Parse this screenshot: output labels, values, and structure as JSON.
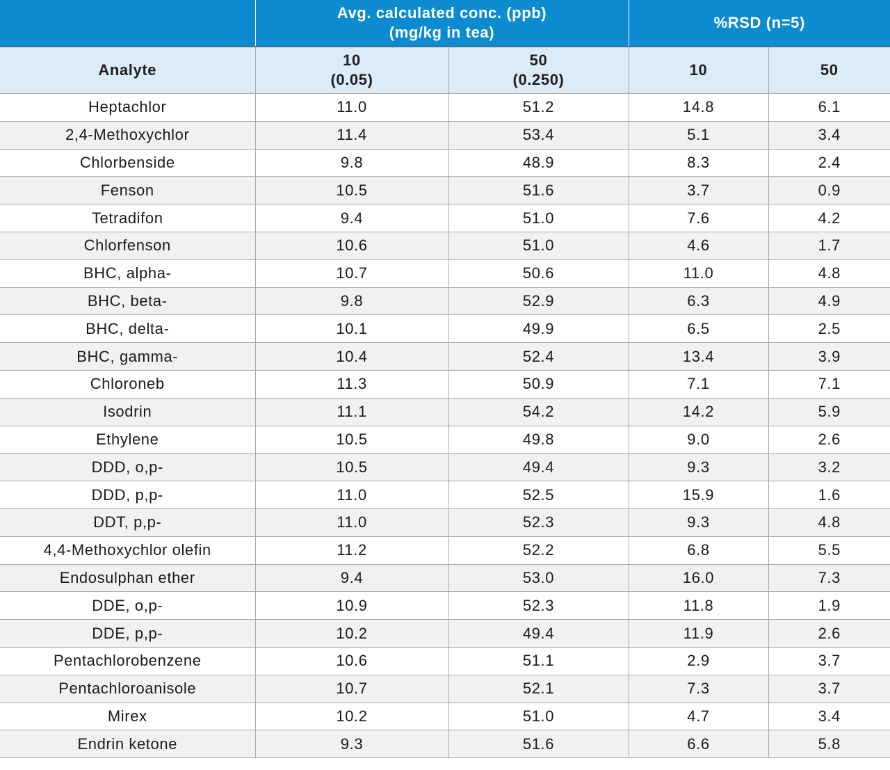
{
  "header": {
    "group_blank": "",
    "group_conc_line1": "Avg. calculated conc. (ppb)",
    "group_conc_line2": "(mg/kg in tea)",
    "group_rsd": "%RSD (n=5)",
    "analyte": "Analyte",
    "conc10_line1": "10",
    "conc10_line2": "(0.05)",
    "conc50_line1": "50",
    "conc50_line2": "(0.250)",
    "rsd10": "10",
    "rsd50": "50"
  },
  "rows": [
    {
      "analyte": "Heptachlor",
      "c10": "11.0",
      "c50": "51.2",
      "r10": "14.8",
      "r50": "6.1"
    },
    {
      "analyte": "2,4-Methoxychlor",
      "c10": "11.4",
      "c50": "53.4",
      "r10": "5.1",
      "r50": "3.4"
    },
    {
      "analyte": "Chlorbenside",
      "c10": "9.8",
      "c50": "48.9",
      "r10": "8.3",
      "r50": "2.4"
    },
    {
      "analyte": "Fenson",
      "c10": "10.5",
      "c50": "51.6",
      "r10": "3.7",
      "r50": "0.9"
    },
    {
      "analyte": "Tetradifon",
      "c10": "9.4",
      "c50": "51.0",
      "r10": "7.6",
      "r50": "4.2"
    },
    {
      "analyte": "Chlorfenson",
      "c10": "10.6",
      "c50": "51.0",
      "r10": "4.6",
      "r50": "1.7"
    },
    {
      "analyte": "BHC, alpha-",
      "c10": "10.7",
      "c50": "50.6",
      "r10": "11.0",
      "r50": "4.8"
    },
    {
      "analyte": "BHC, beta-",
      "c10": "9.8",
      "c50": "52.9",
      "r10": "6.3",
      "r50": "4.9"
    },
    {
      "analyte": "BHC, delta-",
      "c10": "10.1",
      "c50": "49.9",
      "r10": "6.5",
      "r50": "2.5"
    },
    {
      "analyte": "BHC, gamma-",
      "c10": "10.4",
      "c50": "52.4",
      "r10": "13.4",
      "r50": "3.9"
    },
    {
      "analyte": "Chloroneb",
      "c10": "11.3",
      "c50": "50.9",
      "r10": "7.1",
      "r50": "7.1"
    },
    {
      "analyte": "Isodrin",
      "c10": "11.1",
      "c50": "54.2",
      "r10": "14.2",
      "r50": "5.9"
    },
    {
      "analyte": "Ethylene",
      "c10": "10.5",
      "c50": "49.8",
      "r10": "9.0",
      "r50": "2.6"
    },
    {
      "analyte": "DDD, o,p-",
      "c10": "10.5",
      "c50": "49.4",
      "r10": "9.3",
      "r50": "3.2"
    },
    {
      "analyte": "DDD, p,p-",
      "c10": "11.0",
      "c50": "52.5",
      "r10": "15.9",
      "r50": "1.6"
    },
    {
      "analyte": "DDT, p,p-",
      "c10": "11.0",
      "c50": "52.3",
      "r10": "9.3",
      "r50": "4.8"
    },
    {
      "analyte": "4,4-Methoxychlor olefin",
      "c10": "11.2",
      "c50": "52.2",
      "r10": "6.8",
      "r50": "5.5"
    },
    {
      "analyte": "Endosulphan ether",
      "c10": "9.4",
      "c50": "53.0",
      "r10": "16.0",
      "r50": "7.3"
    },
    {
      "analyte": "DDE, o,p-",
      "c10": "10.9",
      "c50": "52.3",
      "r10": "11.8",
      "r50": "1.9"
    },
    {
      "analyte": "DDE, p,p-",
      "c10": "10.2",
      "c50": "49.4",
      "r10": "11.9",
      "r50": "2.6"
    },
    {
      "analyte": "Pentachlorobenzene",
      "c10": "10.6",
      "c50": "51.1",
      "r10": "2.9",
      "r50": "3.7"
    },
    {
      "analyte": "Pentachloroanisole",
      "c10": "10.7",
      "c50": "52.1",
      "r10": "7.3",
      "r50": "3.7"
    },
    {
      "analyte": "Mirex",
      "c10": "10.2",
      "c50": "51.0",
      "r10": "4.7",
      "r50": "3.4"
    },
    {
      "analyte": "Endrin ketone",
      "c10": "9.3",
      "c50": "51.6",
      "r10": "6.6",
      "r50": "5.8"
    }
  ],
  "colors": {
    "header_blue": "#0c8bd0",
    "subheader_light_blue": "#dcebf8",
    "stripe_gray": "#f0f1f3",
    "grid_line": "#a9a9a9"
  }
}
